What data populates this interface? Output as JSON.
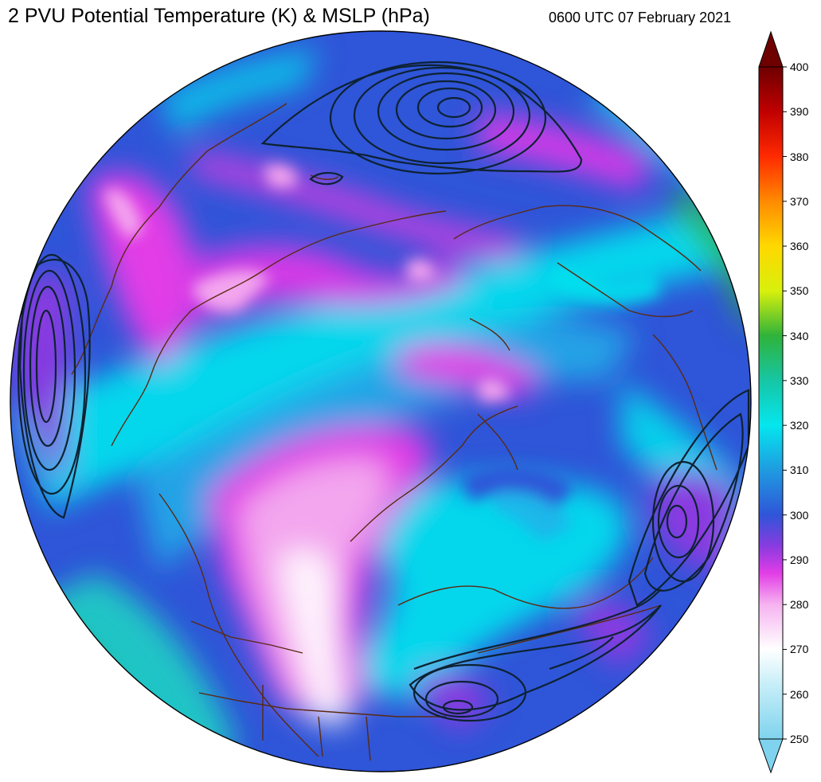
{
  "header": {
    "title": "2 PVU Potential Temperature (K) & MSLP (hPa)",
    "valid_time": "0600 UTC 07 February 2021"
  },
  "colorbar": {
    "min": 250,
    "max": 400,
    "tick_labels": [
      "250",
      "260",
      "270",
      "280",
      "290",
      "300",
      "310",
      "320",
      "330",
      "340",
      "350",
      "360",
      "370",
      "380",
      "390",
      "400"
    ],
    "stops": [
      {
        "value": 250,
        "color": "#7fd3ee"
      },
      {
        "value": 262,
        "color": "#c6eef8"
      },
      {
        "value": 270,
        "color": "#ffffff"
      },
      {
        "value": 280,
        "color": "#f6b3f0"
      },
      {
        "value": 287,
        "color": "#e23de6"
      },
      {
        "value": 293,
        "color": "#8a3be0"
      },
      {
        "value": 300,
        "color": "#2f55d8"
      },
      {
        "value": 310,
        "color": "#1f9be0"
      },
      {
        "value": 320,
        "color": "#05e6ee"
      },
      {
        "value": 330,
        "color": "#16c6a4"
      },
      {
        "value": 340,
        "color": "#2fb33a"
      },
      {
        "value": 350,
        "color": "#d8f00c"
      },
      {
        "value": 360,
        "color": "#ffd800"
      },
      {
        "value": 370,
        "color": "#ff8a00"
      },
      {
        "value": 380,
        "color": "#ff2a00"
      },
      {
        "value": 390,
        "color": "#c00000"
      },
      {
        "value": 400,
        "color": "#6e0000"
      }
    ]
  },
  "map": {
    "projection": "orthographic-north-polar",
    "field_colors": {
      "magenta": "#e23de6",
      "pink": "#f3a6ee",
      "violet": "#8a3be0",
      "royal_blue": "#2f55d8",
      "cyan": "#05e6ee",
      "sky": "#1f9be0",
      "green": "#2fb33a"
    },
    "coastline_color": "#5a2a12",
    "isobar_color": "#0d2233"
  }
}
